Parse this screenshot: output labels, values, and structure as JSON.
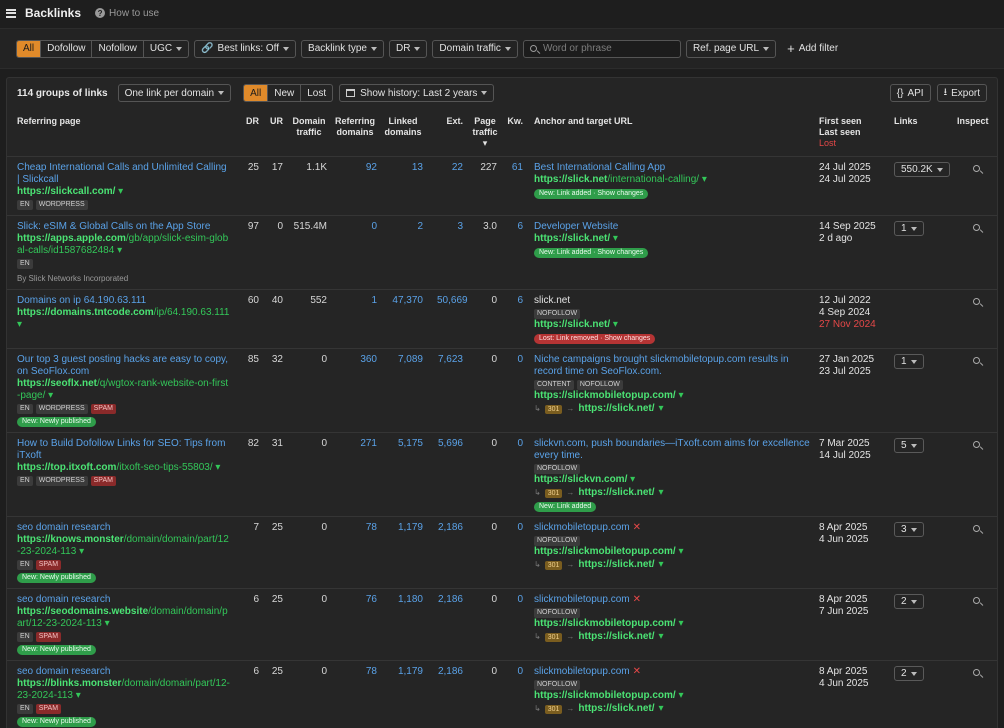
{
  "header": {
    "title": "Backlinks",
    "help": "How to use",
    "help_icon": "question-circle-icon"
  },
  "filters": {
    "type_segments": [
      "All",
      "Dofollow",
      "Nofollow",
      "UGC"
    ],
    "best_links": "Best links: Off",
    "backlink_type": "Backlink type",
    "dr": "DR",
    "domain_traffic": "Domain traffic",
    "search_placeholder": "Word or phrase",
    "ref_page_url": "Ref. page URL",
    "add_filter": "Add filter",
    "accent_color": "#e08a2a"
  },
  "toolbar": {
    "groups": "114 groups of links",
    "grouping": "One link per domain",
    "status_segments": [
      "All",
      "New",
      "Lost"
    ],
    "history": "Show history: Last 2 years",
    "api": "API",
    "export": "Export"
  },
  "columns": {
    "referring_page": "Referring page",
    "dr": "DR",
    "ur": "UR",
    "domain_traffic": "Domain traffic",
    "referring_domains": "Referring domains",
    "linked_domains": "Linked domains",
    "ext": "Ext.",
    "page_traffic": "Page traffic",
    "kw": "Kw.",
    "anchor": "Anchor and target URL",
    "first_seen": "First seen",
    "last_seen": "Last seen",
    "lost": "Lost",
    "links": "Links",
    "inspect": "Inspect"
  },
  "rows": [
    {
      "title": "Cheap International Calls and Unlimited Calling | Slickcall",
      "url_bold": "https://slickcall.com/",
      "url_rest": "",
      "tags": [
        "EN",
        "WORDPRESS"
      ],
      "badge": "",
      "owner": "",
      "dr": "25",
      "ur": "17",
      "domain_traffic": "1.1K",
      "ref_domains": "92",
      "linked_domains": "13",
      "ext": "22",
      "page_traffic": "227",
      "kw": "61",
      "anchor": "Best International Calling App",
      "anchor_linked": true,
      "anchor_tags": [],
      "target_bold": "https://slick.net",
      "target_rest": "/international-calling/",
      "redirect": "",
      "status": "New: Link added · Show changes",
      "status_color": "green",
      "first_seen": "24 Jul 2025",
      "last_seen": "24 Jul 2025",
      "lost_date": "",
      "links": "550.2K"
    },
    {
      "title": "Slick: eSIM & Global Calls on the App Store",
      "url_bold": "https://apps.apple.com",
      "url_rest": "/gb/app/slick-esim-global-calls/id1587682484",
      "tags": [
        "EN"
      ],
      "badge": "",
      "owner": "By Slick Networks Incorporated",
      "dr": "97",
      "ur": "0",
      "domain_traffic": "515.4M",
      "ref_domains": "0",
      "linked_domains": "2",
      "ext": "3",
      "page_traffic": "3.0",
      "kw": "6",
      "anchor": "Developer Website",
      "anchor_linked": true,
      "anchor_tags": [],
      "target_bold": "https://slick.net/",
      "target_rest": "",
      "redirect": "",
      "status": "New: Link added · Show changes",
      "status_color": "green",
      "first_seen": "14 Sep 2025",
      "last_seen": "2 d ago",
      "lost_date": "",
      "links": "1"
    },
    {
      "title": "Domains on ip 64.190.63.111",
      "url_bold": "https://domains.tntcode.com",
      "url_rest": "/ip/64.190.63.111",
      "tags": [],
      "badge": "",
      "owner": "",
      "dr": "60",
      "ur": "40",
      "domain_traffic": "552",
      "ref_domains": "1",
      "linked_domains": "47,370",
      "ext": "50,669",
      "page_traffic": "0",
      "kw": "6",
      "anchor": "slick.net",
      "anchor_linked": false,
      "anchor_tags": [
        "NOFOLLOW"
      ],
      "target_bold": "https://slick.net/",
      "target_rest": "",
      "redirect": "",
      "status": "Lost: Link removed · Show changes",
      "status_color": "red",
      "first_seen": "12 Jul 2022",
      "last_seen": "4 Sep 2024",
      "lost_date": "27 Nov 2024",
      "links": ""
    },
    {
      "title": "Our top 3 guest posting hacks are easy to copy, on SeoFlox.com",
      "url_bold": "https://seoflx.net",
      "url_rest": "/q/wgtox-rank-website-on-first-page/",
      "tags": [
        "EN",
        "WORDPRESS",
        "SPAM"
      ],
      "badge": "New: Newly published",
      "owner": "",
      "dr": "85",
      "ur": "32",
      "domain_traffic": "0",
      "ref_domains": "360",
      "linked_domains": "7,089",
      "ext": "7,623",
      "page_traffic": "0",
      "kw": "0",
      "anchor": "Niche campaigns brought slickmobiletopup.com results in record time on SeoFlox.com.",
      "anchor_linked": true,
      "anchor_tags": [
        "CONTENT",
        "NOFOLLOW"
      ],
      "target_bold": "https://slickmobiletopup.com/",
      "target_rest": "",
      "redirect": "https://slick.net/",
      "status": "",
      "status_color": "",
      "first_seen": "27 Jan 2025",
      "last_seen": "23 Jul 2025",
      "lost_date": "",
      "links": "1"
    },
    {
      "title": "How to Build Dofollow Links for SEO: Tips from iTxoft",
      "url_bold": "https://top.itxoft.com",
      "url_rest": "/itxoft-seo-tips-55803/",
      "tags": [
        "EN",
        "WORDPRESS",
        "SPAM"
      ],
      "badge": "",
      "owner": "",
      "dr": "82",
      "ur": "31",
      "domain_traffic": "0",
      "ref_domains": "271",
      "linked_domains": "5,175",
      "ext": "5,696",
      "page_traffic": "0",
      "kw": "0",
      "anchor": "slickvn.com, push boundaries—iTxoft.com aims for excellence every time.",
      "anchor_linked": true,
      "anchor_tags": [
        "NOFOLLOW"
      ],
      "target_bold": "https://slickvn.com/",
      "target_rest": "",
      "redirect": "https://slick.net/",
      "status": "New: Link added",
      "status_color": "green",
      "first_seen": "7 Mar 2025",
      "last_seen": "14 Jul 2025",
      "lost_date": "",
      "links": "5"
    },
    {
      "title": "seo domain research",
      "url_bold": "https://knows.monster",
      "url_rest": "/domain/domain/part/12-23-2024-113",
      "tags": [
        "EN",
        "SPAM"
      ],
      "badge": "New: Newly published",
      "owner": "",
      "dr": "7",
      "ur": "25",
      "domain_traffic": "0",
      "ref_domains": "78",
      "linked_domains": "1,179",
      "ext": "2,186",
      "page_traffic": "0",
      "kw": "0",
      "anchor": "slickmobiletopup.com",
      "anchor_linked": true,
      "anchor_x": true,
      "anchor_tags": [
        "NOFOLLOW"
      ],
      "target_bold": "https://slickmobiletopup.com/",
      "target_rest": "",
      "redirect": "https://slick.net/",
      "status": "",
      "status_color": "",
      "first_seen": "8 Apr 2025",
      "last_seen": "4 Jun 2025",
      "lost_date": "",
      "links": "3"
    },
    {
      "title": "seo domain research",
      "url_bold": "https://seodomains.website",
      "url_rest": "/domain/domain/part/12-23-2024-113",
      "tags": [
        "EN",
        "SPAM"
      ],
      "badge": "New: Newly published",
      "owner": "",
      "dr": "6",
      "ur": "25",
      "domain_traffic": "0",
      "ref_domains": "76",
      "linked_domains": "1,180",
      "ext": "2,186",
      "page_traffic": "0",
      "kw": "0",
      "anchor": "slickmobiletopup.com",
      "anchor_linked": true,
      "anchor_x": true,
      "anchor_tags": [
        "NOFOLLOW"
      ],
      "target_bold": "https://slickmobiletopup.com/",
      "target_rest": "",
      "redirect": "https://slick.net/",
      "status": "",
      "status_color": "",
      "first_seen": "8 Apr 2025",
      "last_seen": "7 Jun 2025",
      "lost_date": "",
      "links": "2"
    },
    {
      "title": "seo domain research",
      "url_bold": "https://blinks.monster",
      "url_rest": "/domain/domain/part/12-23-2024-113",
      "tags": [
        "EN",
        "SPAM"
      ],
      "badge": "New: Newly published",
      "owner": "",
      "dr": "6",
      "ur": "25",
      "domain_traffic": "0",
      "ref_domains": "78",
      "linked_domains": "1,179",
      "ext": "2,186",
      "page_traffic": "0",
      "kw": "0",
      "anchor": "slickmobiletopup.com",
      "anchor_linked": true,
      "anchor_x": true,
      "anchor_tags": [
        "NOFOLLOW"
      ],
      "target_bold": "https://slickmobiletopup.com/",
      "target_rest": "",
      "redirect": "https://slick.net/",
      "status": "",
      "status_color": "",
      "first_seen": "8 Apr 2025",
      "last_seen": "4 Jun 2025",
      "lost_date": "",
      "links": "2"
    }
  ]
}
